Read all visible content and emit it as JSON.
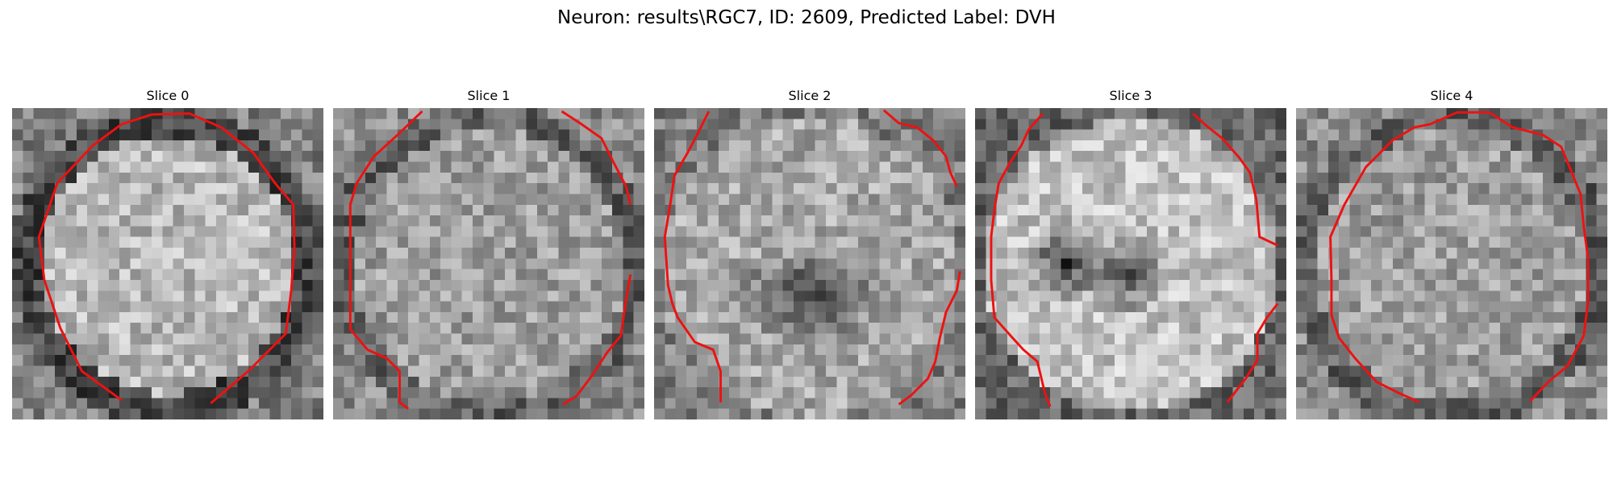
{
  "figure": {
    "title": "Neuron: results\\RGC7, ID: 2609, Predicted Label: DVH"
  },
  "contour_color": "#ee1111",
  "slices": [
    {
      "title": "Slice 0",
      "tone": "bright-center"
    },
    {
      "title": "Slice 1",
      "tone": "mixed"
    },
    {
      "title": "Slice 2",
      "tone": "dark-center"
    },
    {
      "title": "Slice 3",
      "tone": "dark-center-bright-ring"
    },
    {
      "title": "Slice 4",
      "tone": "mixed"
    }
  ]
}
